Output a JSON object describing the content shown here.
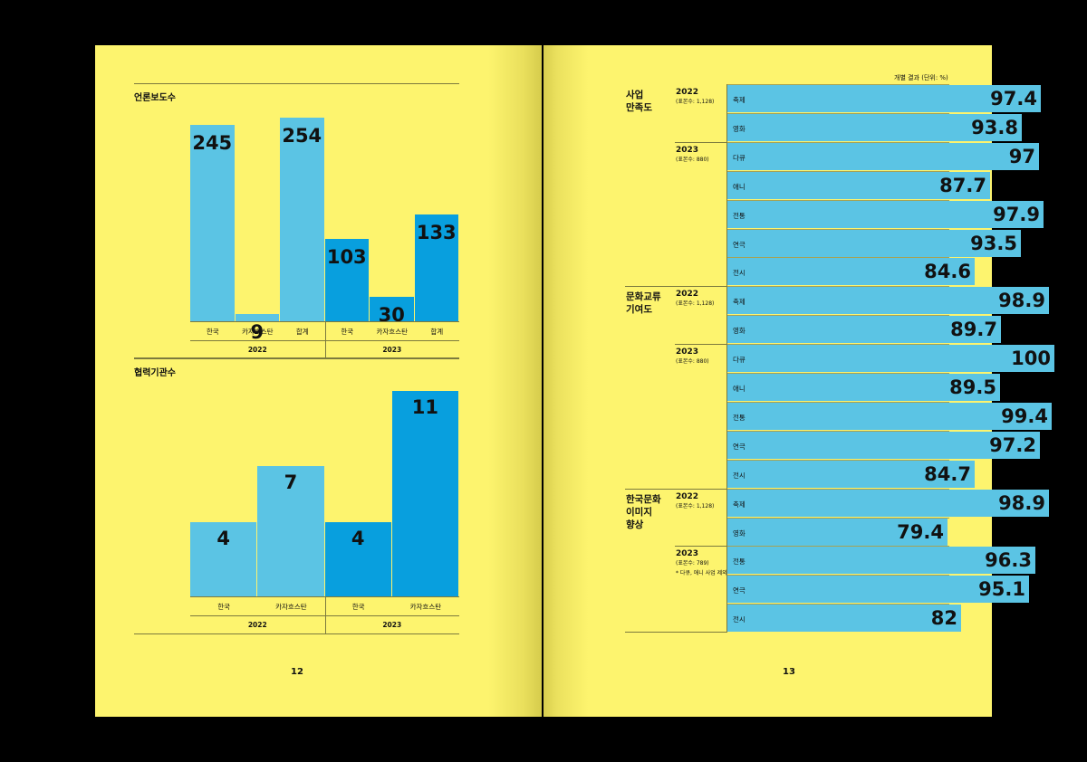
{
  "left": {
    "page_number": "12",
    "press": {
      "title": "언론보도수",
      "bars": [
        {
          "label": "한국",
          "value": 245,
          "display": "245",
          "year_index": 0
        },
        {
          "label": "카자흐스탄",
          "value": 9,
          "display": "9",
          "year_index": 0
        },
        {
          "label": "합계",
          "value": 254,
          "display": "254",
          "year_index": 0
        },
        {
          "label": "한국",
          "value": 103,
          "display": "103",
          "year_index": 1
        },
        {
          "label": "카자흐스탄",
          "value": 30,
          "display": "30",
          "year_index": 1
        },
        {
          "label": "합계",
          "value": 133,
          "display": "133",
          "year_index": 1
        }
      ],
      "years": [
        "2022",
        "2023"
      ]
    },
    "partners": {
      "title": "협력기관수",
      "bars": [
        {
          "label": "한국",
          "value": 4,
          "display": "4",
          "year_index": 0
        },
        {
          "label": "카자흐스탄",
          "value": 7,
          "display": "7",
          "year_index": 0
        },
        {
          "label": "한국",
          "value": 4,
          "display": "4",
          "year_index": 1
        },
        {
          "label": "카자흐스탄",
          "value": 11,
          "display": "11",
          "year_index": 1
        }
      ],
      "years": [
        "2022",
        "2023"
      ]
    }
  },
  "right": {
    "page_number": "13",
    "unit_note": "개별 결과 (단위: %)",
    "groups": [
      {
        "name": [
          "사업",
          "만족도"
        ],
        "years": [
          {
            "year": "2022",
            "sample": "(표본수: 1,128)",
            "note": ""
          },
          {
            "year": "2023",
            "sample": "(표본수: 880)",
            "note": ""
          }
        ]
      },
      {
        "name": [
          "문화교류",
          "기여도"
        ],
        "years": [
          {
            "year": "2022",
            "sample": "(표본수: 1,128)",
            "note": ""
          },
          {
            "year": "2023",
            "sample": "(표본수: 880)",
            "note": ""
          }
        ]
      },
      {
        "name": [
          "한국문화",
          "이미지",
          "향상"
        ],
        "years": [
          {
            "year": "2022",
            "sample": "(표본수: 1,128)",
            "note": ""
          },
          {
            "year": "2023",
            "sample": "(표본수: 789)",
            "note": "* 다큐, 애니 사업 제외"
          }
        ]
      }
    ],
    "rows": [
      {
        "label": "축제",
        "value": 97.4,
        "display": "97.4"
      },
      {
        "label": "영화",
        "value": 93.8,
        "display": "93.8"
      },
      {
        "label": "다큐",
        "value": 97,
        "display": "97"
      },
      {
        "label": "애니",
        "value": 87.7,
        "display": "87.7"
      },
      {
        "label": "전통",
        "value": 97.9,
        "display": "97.9"
      },
      {
        "label": "연극",
        "value": 93.5,
        "display": "93.5"
      },
      {
        "label": "전시",
        "value": 84.6,
        "display": "84.6"
      },
      {
        "label": "축제",
        "value": 98.9,
        "display": "98.9"
      },
      {
        "label": "영화",
        "value": 89.7,
        "display": "89.7"
      },
      {
        "label": "다큐",
        "value": 100,
        "display": "100"
      },
      {
        "label": "애니",
        "value": 89.5,
        "display": "89.5"
      },
      {
        "label": "전통",
        "value": 99.4,
        "display": "99.4"
      },
      {
        "label": "연극",
        "value": 97.2,
        "display": "97.2"
      },
      {
        "label": "전시",
        "value": 84.7,
        "display": "84.7"
      },
      {
        "label": "축제",
        "value": 98.9,
        "display": "98.9"
      },
      {
        "label": "영화",
        "value": 79.4,
        "display": "79.4"
      },
      {
        "label": "전통",
        "value": 96.3,
        "display": "96.3"
      },
      {
        "label": "연극",
        "value": 95.1,
        "display": "95.1"
      },
      {
        "label": "전시",
        "value": 82,
        "display": "82"
      }
    ]
  },
  "colors": {
    "page": "#fdf46e",
    "bar_2022": "#5bc4e4",
    "bar_2023": "#089fde",
    "ink": "#111111"
  }
}
